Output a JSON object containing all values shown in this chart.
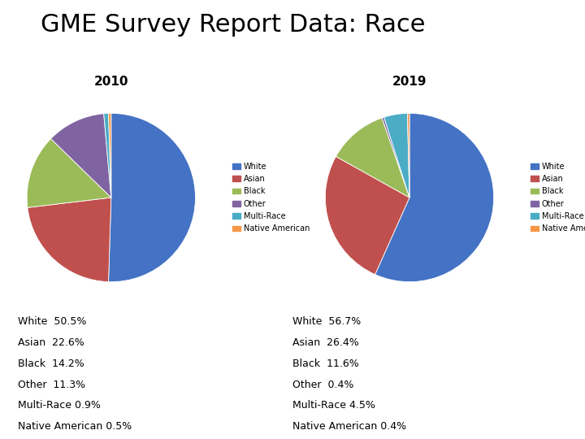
{
  "title": "GME Survey Report Data: Race",
  "title_fontsize": 22,
  "title_fontweight": "normal",
  "subtitle_2010": "2010",
  "subtitle_2019": "2019",
  "subtitle_fontsize": 11,
  "categories": [
    "White",
    "Asian",
    "Black",
    "Other",
    "Multi-Race",
    "Native American"
  ],
  "values_2010": [
    50.5,
    22.6,
    14.2,
    11.3,
    0.9,
    0.5
  ],
  "values_2019": [
    56.7,
    26.4,
    11.6,
    0.4,
    4.5,
    0.4
  ],
  "colors": [
    "#4472C4",
    "#C0504D",
    "#9BBB59",
    "#8064A2",
    "#4BACC6",
    "#F79646"
  ],
  "legend_labels": [
    "White",
    "Asian",
    "Black",
    "Other",
    "Multi-Race",
    "Native American"
  ],
  "text_2010": [
    "White  50.5%",
    "Asian  22.6%",
    "Black  14.2%",
    "Other  11.3%",
    "Multi-Race 0.9%",
    "Native American 0.5%"
  ],
  "text_2019": [
    "White  56.7%",
    "Asian  26.4%",
    "Black  11.6%",
    "Other  0.4%",
    "Multi-Race 4.5%",
    "Native American 0.4%"
  ],
  "background_color": "#ffffff"
}
